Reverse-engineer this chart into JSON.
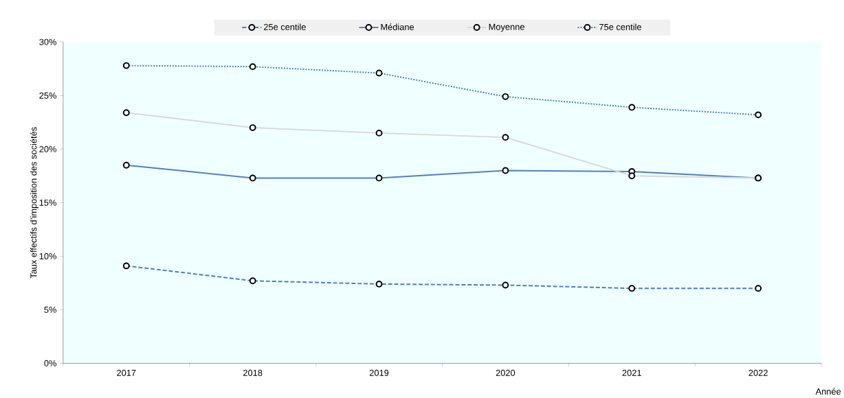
{
  "chart_data": {
    "type": "line",
    "xlabel": "Année",
    "ylabel": "Taux effectifs d’imposition des sociétés",
    "categories": [
      "2017",
      "2018",
      "2019",
      "2020",
      "2021",
      "2022"
    ],
    "series": [
      {
        "name": "25e centile",
        "color": "#4a7ebb",
        "line_style": "dashed",
        "values": [
          9.1,
          7.7,
          7.4,
          7.3,
          7.0,
          7.0
        ]
      },
      {
        "name": "Médiane",
        "color": "#4f81bd",
        "line_style": "solid",
        "values": [
          18.5,
          17.3,
          17.3,
          18.0,
          17.9,
          17.3
        ]
      },
      {
        "name": "Moyenne",
        "color": "#d9d9d9",
        "line_style": "solid",
        "values": [
          23.4,
          22.0,
          21.5,
          21.1,
          17.5,
          17.3
        ]
      },
      {
        "name": "75e centile",
        "color": "#4a7ebb",
        "line_style": "dotted",
        "values": [
          27.8,
          27.7,
          27.1,
          24.9,
          23.9,
          23.2
        ]
      }
    ],
    "ylim": [
      0,
      30
    ],
    "yticks": [
      {
        "value": 0,
        "label": "0%"
      },
      {
        "value": 5,
        "label": "5%"
      },
      {
        "value": 10,
        "label": "10%"
      },
      {
        "value": 15,
        "label": "15%"
      },
      {
        "value": 20,
        "label": "20%"
      },
      {
        "value": 25,
        "label": "25%"
      },
      {
        "value": 30,
        "label": "30%"
      }
    ],
    "marker": "circle",
    "legend": "top",
    "grid": false
  }
}
